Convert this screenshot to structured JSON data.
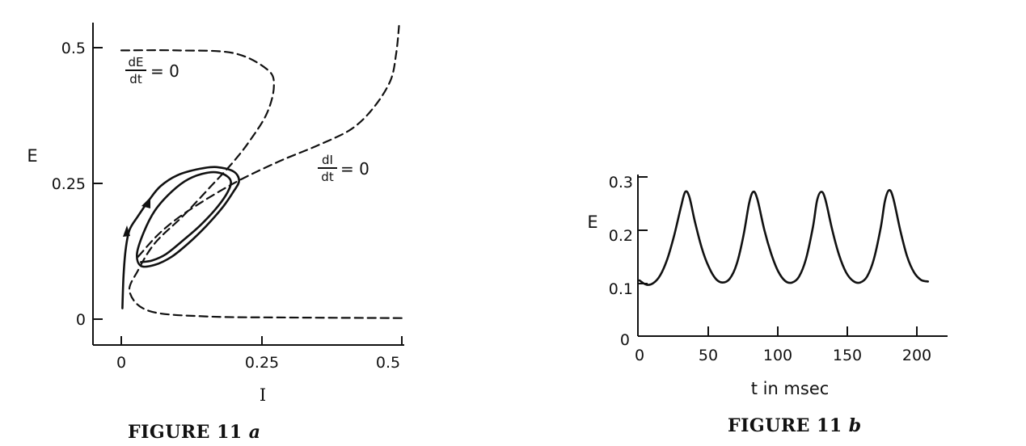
{
  "chart_data": [
    {
      "type": "line",
      "caption": "FIGURE 11",
      "caption_letter": "a",
      "xlabel": "I",
      "ylabel": "E",
      "xlim": [
        0,
        0.5
      ],
      "ylim": [
        0,
        0.5
      ],
      "xticks": [
        "0",
        "0.25",
        "0.5"
      ],
      "yticks": [
        "0",
        "0.25",
        "0.5"
      ],
      "annotations": {
        "dE_num": "dE",
        "dE_den": "dt",
        "dE_eq": "= 0",
        "dI_num": "dI",
        "dI_den": "dt",
        "dI_eq": "= 0"
      },
      "series": [
        {
          "style": "dashed",
          "points": [
            [
              0,
              0.495
            ],
            [
              0.1,
              0.495
            ],
            [
              0.2,
              0.49
            ],
            [
              0.26,
              0.46
            ],
            [
              0.272,
              0.43
            ],
            [
              0.26,
              0.38
            ],
            [
              0.23,
              0.33
            ],
            [
              0.2,
              0.29
            ],
            [
              0.16,
              0.245
            ],
            [
              0.11,
              0.19
            ],
            [
              0.06,
              0.14
            ],
            [
              0.03,
              0.09
            ],
            [
              0.015,
              0.05
            ],
            [
              0.05,
              0.015
            ],
            [
              0.15,
              0.005
            ],
            [
              0.3,
              0.003
            ],
            [
              0.5,
              0.002
            ]
          ]
        },
        {
          "style": "dashed",
          "points": [
            [
              0.03,
              0.115
            ],
            [
              0.07,
              0.16
            ],
            [
              0.12,
              0.2
            ],
            [
              0.2,
              0.25
            ],
            [
              0.28,
              0.29
            ],
            [
              0.35,
              0.32
            ],
            [
              0.41,
              0.35
            ],
            [
              0.45,
              0.39
            ],
            [
              0.48,
              0.44
            ],
            [
              0.49,
              0.49
            ],
            [
              0.495,
              0.54
            ]
          ]
        },
        {
          "style": "solid",
          "points": [
            [
              0.002,
              0.02
            ],
            [
              0.004,
              0.08
            ],
            [
              0.008,
              0.13
            ],
            [
              0.015,
              0.165
            ],
            [
              0.03,
              0.19
            ],
            [
              0.05,
              0.22
            ],
            [
              0.07,
              0.245
            ],
            [
              0.1,
              0.265
            ],
            [
              0.14,
              0.277
            ],
            [
              0.17,
              0.28
            ],
            [
              0.2,
              0.272
            ],
            [
              0.21,
              0.255
            ],
            [
              0.2,
              0.235
            ],
            [
              0.18,
              0.205
            ],
            [
              0.15,
              0.17
            ],
            [
              0.12,
              0.14
            ],
            [
              0.09,
              0.115
            ],
            [
              0.06,
              0.1
            ],
            [
              0.035,
              0.098
            ],
            [
              0.028,
              0.12
            ],
            [
              0.04,
              0.16
            ],
            [
              0.06,
              0.2
            ],
            [
              0.09,
              0.235
            ],
            [
              0.12,
              0.258
            ],
            [
              0.155,
              0.27
            ],
            [
              0.18,
              0.268
            ],
            [
              0.195,
              0.255
            ],
            [
              0.19,
              0.235
            ],
            [
              0.17,
              0.205
            ],
            [
              0.14,
              0.172
            ],
            [
              0.11,
              0.145
            ],
            [
              0.08,
              0.12
            ],
            [
              0.055,
              0.108
            ],
            [
              0.035,
              0.105
            ]
          ]
        }
      ]
    },
    {
      "type": "line",
      "caption": "FIGURE 11",
      "caption_letter": "b",
      "xlabel": "t in msec",
      "ylabel": "E",
      "xlim": [
        0,
        215
      ],
      "ylim": [
        0,
        0.3
      ],
      "xticks": [
        "0",
        "50",
        "100",
        "150",
        "200"
      ],
      "yticks": [
        "0",
        "0.1",
        "0.2",
        "0.3"
      ],
      "series": [
        {
          "style": "solid",
          "points": [
            [
              0,
              0.105
            ],
            [
              5,
              0.097
            ],
            [
              10,
              0.1
            ],
            [
              15,
              0.115
            ],
            [
              20,
              0.145
            ],
            [
              25,
              0.19
            ],
            [
              30,
              0.245
            ],
            [
              33,
              0.272
            ],
            [
              36,
              0.262
            ],
            [
              40,
              0.215
            ],
            [
              45,
              0.165
            ],
            [
              50,
              0.13
            ],
            [
              55,
              0.108
            ],
            [
              60,
              0.101
            ],
            [
              65,
              0.108
            ],
            [
              70,
              0.135
            ],
            [
              75,
              0.19
            ],
            [
              79,
              0.25
            ],
            [
              82,
              0.272
            ],
            [
              85,
              0.258
            ],
            [
              90,
              0.2
            ],
            [
              95,
              0.155
            ],
            [
              100,
              0.122
            ],
            [
              105,
              0.104
            ],
            [
              110,
              0.101
            ],
            [
              115,
              0.112
            ],
            [
              120,
              0.145
            ],
            [
              125,
              0.205
            ],
            [
              128,
              0.255
            ],
            [
              131,
              0.272
            ],
            [
              134,
              0.258
            ],
            [
              139,
              0.2
            ],
            [
              144,
              0.152
            ],
            [
              149,
              0.12
            ],
            [
              154,
              0.104
            ],
            [
              159,
              0.101
            ],
            [
              164,
              0.112
            ],
            [
              169,
              0.145
            ],
            [
              174,
              0.205
            ],
            [
              177,
              0.255
            ],
            [
              180,
              0.275
            ],
            [
              183,
              0.26
            ],
            [
              188,
              0.2
            ],
            [
              193,
              0.15
            ],
            [
              198,
              0.12
            ],
            [
              203,
              0.106
            ],
            [
              208,
              0.103
            ]
          ]
        }
      ]
    }
  ]
}
